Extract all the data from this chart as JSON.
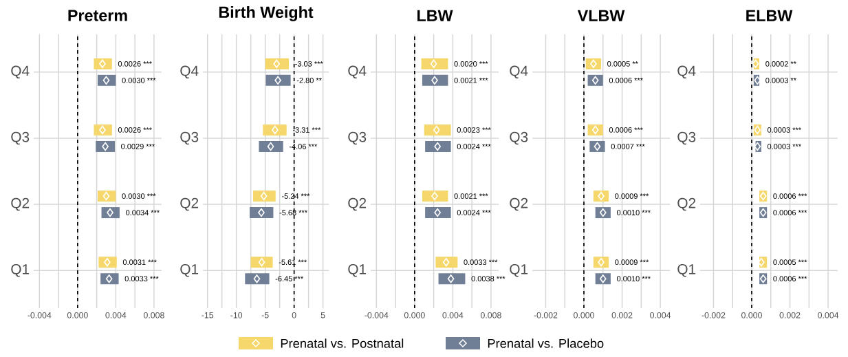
{
  "chart_data": [
    {
      "type": "scatter",
      "title": "Preterm",
      "orientation": "horizontal",
      "categories": [
        "Q4",
        "Q3",
        "Q2",
        "Q1"
      ],
      "xlim": [
        -0.0046,
        0.0088
      ],
      "xticks": [
        -0.004,
        {
          "value": -0.002,
          "label": null
        },
        {
          "value": 0,
          "label": "0.000"
        },
        {
          "value": 0.002,
          "label": null
        },
        0.004,
        {
          "value": 0.006,
          "label": null
        },
        0.008
      ],
      "grid": true,
      "marker": "diamond",
      "legend": "bottom",
      "ref_lines": [
        {
          "axis": "x",
          "value": 0,
          "color": "#000000",
          "line_style": "dashed"
        }
      ],
      "series": [
        {
          "type": "bar",
          "color": "#f6d76b",
          "base": [
            0.0017,
            0.0017,
            0.0021,
            0.0022
          ],
          "values": [
            0.0019,
            0.0019,
            0.0019,
            0.0019
          ]
        },
        {
          "type": "bar",
          "color": "#717f96",
          "base": [
            0.0021,
            0.0019,
            0.0025,
            0.0024
          ],
          "values": [
            0.0019,
            0.002,
            0.0019,
            0.0019
          ]
        },
        {
          "name": "Prenatal vs. Postnatal",
          "color": "#f6d76b",
          "values": [
            0.0026,
            0.0026,
            0.003,
            0.0031
          ],
          "value_labels": [
            "0.0026 ***",
            "0.0026 ***",
            "0.0030 ***",
            "0.0031 ***"
          ]
        },
        {
          "name": "Prenatal vs. Placebo",
          "color": "#717f96",
          "values": [
            0.003,
            0.0029,
            0.0034,
            0.0033
          ],
          "value_labels": [
            "0.0030 ***",
            "0.0029 ***",
            "0.0034 ***",
            "0.0033 ***"
          ]
        }
      ]
    },
    {
      "type": "scatter",
      "title": "Birth Weight",
      "orientation": "horizontal",
      "categories": [
        "Q4",
        "Q3",
        "Q2",
        "Q1"
      ],
      "xlim": [
        -15.8,
        6.0
      ],
      "xticks": [
        -15,
        {
          "value": -12.5,
          "label": null
        },
        -10,
        {
          "value": -7.5,
          "label": null
        },
        -5,
        {
          "value": -2.5,
          "label": null
        },
        0,
        {
          "value": 2.5,
          "label": null
        },
        5
      ],
      "grid": true,
      "marker": "diamond",
      "ref_lines": [
        {
          "axis": "x",
          "value": 0,
          "color": "#000000",
          "line_style": "dashed"
        }
      ],
      "series": [
        {
          "type": "bar",
          "color": "#f6d76b",
          "base": [
            -5.0,
            -5.4,
            -7.1,
            -7.5
          ],
          "values": [
            4.1,
            4.1,
            3.9,
            3.8
          ]
        },
        {
          "type": "bar",
          "color": "#717f96",
          "base": [
            -4.9,
            -6.1,
            -7.7,
            -8.5
          ],
          "values": [
            4.3,
            4.2,
            4.1,
            4.2
          ]
        },
        {
          "color": "#f6d76b",
          "values": [
            -3.03,
            -3.31,
            -5.24,
            -5.61
          ],
          "value_labels": [
            "-3.03 ***",
            "-3.31 ***",
            "-5.24 ***",
            "-5.61 ***"
          ]
        },
        {
          "color": "#717f96",
          "values": [
            -2.8,
            -4.06,
            -5.68,
            -6.45
          ],
          "value_labels": [
            "-2.80 **",
            "-4.06 ***",
            "-5.68 ***",
            "-6.45 ***"
          ]
        }
      ]
    },
    {
      "type": "scatter",
      "title": "LBW",
      "orientation": "horizontal",
      "categories": [
        "Q4",
        "Q3",
        "Q2",
        "Q1"
      ],
      "xlim": [
        -0.0046,
        0.0088
      ],
      "xticks": [
        -0.004,
        {
          "value": -0.002,
          "label": null
        },
        {
          "value": 0,
          "label": "0.000"
        },
        {
          "value": 0.002,
          "label": null
        },
        0.004,
        {
          "value": 0.006,
          "label": null
        },
        0.008
      ],
      "grid": true,
      "marker": "diamond",
      "ref_lines": [
        {
          "axis": "x",
          "value": 0,
          "color": "#000000",
          "line_style": "dashed"
        }
      ],
      "series": [
        {
          "type": "bar",
          "color": "#f6d76b",
          "base": [
            0.0007,
            0.001,
            0.0008,
            0.0022
          ],
          "values": [
            0.0028,
            0.0028,
            0.0027,
            0.0023
          ]
        },
        {
          "type": "bar",
          "color": "#717f96",
          "base": [
            0.0008,
            0.0011,
            0.0011,
            0.0025
          ],
          "values": [
            0.0027,
            0.0027,
            0.0027,
            0.0028
          ]
        },
        {
          "color": "#f6d76b",
          "values": [
            0.002,
            0.0023,
            0.0021,
            0.0033
          ],
          "value_labels": [
            "0.0020 ***",
            "0.0023 ***",
            "0.0021 ***",
            "0.0033 ***"
          ]
        },
        {
          "color": "#717f96",
          "values": [
            0.0021,
            0.0024,
            0.0024,
            0.0038
          ],
          "value_labels": [
            "0.0021 ***",
            "0.0024 ***",
            "0.0024 ***",
            "0.0038 ***"
          ]
        }
      ]
    },
    {
      "type": "scatter",
      "title": "VLBW",
      "orientation": "horizontal",
      "categories": [
        "Q4",
        "Q3",
        "Q2",
        "Q1"
      ],
      "xlim": [
        -0.0027,
        0.0045
      ],
      "xticks": [
        -0.002,
        {
          "value": -0.001,
          "label": null
        },
        {
          "value": 0,
          "label": "0.000"
        },
        {
          "value": 0.001,
          "label": null
        },
        0.002,
        {
          "value": 0.003,
          "label": null
        },
        0.004
      ],
      "grid": true,
      "marker": "diamond",
      "ref_lines": [
        {
          "axis": "x",
          "value": 0,
          "color": "#000000",
          "line_style": "dashed"
        }
      ],
      "series": [
        {
          "type": "bar",
          "color": "#f6d76b",
          "base": [
            0.0001,
            0.0002,
            0.0005,
            0.0005
          ],
          "values": [
            0.0008,
            0.0008,
            0.0008,
            0.0008
          ]
        },
        {
          "type": "bar",
          "color": "#717f96",
          "base": [
            0.0002,
            0.0003,
            0.0006,
            0.0006
          ],
          "values": [
            0.0008,
            0.0008,
            0.0008,
            0.0008
          ]
        },
        {
          "color": "#f6d76b",
          "values": [
            0.0005,
            0.0006,
            0.0009,
            0.0009
          ],
          "value_labels": [
            "0.0005 **",
            "0.0006 ***",
            "0.0009 ***",
            "0.0009 ***"
          ]
        },
        {
          "color": "#717f96",
          "values": [
            0.0006,
            0.0007,
            0.001,
            0.001
          ],
          "value_labels": [
            "0.0006 ***",
            "0.0007 ***",
            "0.0010 ***",
            "0.0010 ***"
          ]
        }
      ]
    },
    {
      "type": "scatter",
      "title": "ELBW",
      "orientation": "horizontal",
      "categories": [
        "Q4",
        "Q3",
        "Q2",
        "Q1"
      ],
      "xlim": [
        -0.0027,
        0.0045
      ],
      "xticks": [
        -0.002,
        {
          "value": -0.001,
          "label": null
        },
        {
          "value": 0,
          "label": "0.000"
        },
        {
          "value": 0.001,
          "label": null
        },
        0.002,
        {
          "value": 0.003,
          "label": null
        },
        0.004
      ],
      "grid": true,
      "marker": "diamond",
      "ref_lines": [
        {
          "axis": "x",
          "value": 0,
          "color": "#000000",
          "line_style": "dashed"
        }
      ],
      "series": [
        {
          "type": "bar",
          "color": "#f6d76b",
          "base": [
            0.0001,
            0.0001,
            0.0004,
            0.0004
          ],
          "values": [
            0.0003,
            0.0004,
            0.0004,
            0.0004
          ]
        },
        {
          "type": "bar",
          "color": "#717f96",
          "base": [
            0.0001,
            0.0002,
            0.0004,
            0.0004
          ],
          "values": [
            0.0003,
            0.0003,
            0.0004,
            0.0004
          ]
        },
        {
          "color": "#f6d76b",
          "values": [
            0.0002,
            0.0003,
            0.0006,
            0.0005
          ],
          "value_labels": [
            "0.0002 **",
            "0.0003 ***",
            "0.0006 ***",
            "0.0005 ***"
          ]
        },
        {
          "color": "#717f96",
          "values": [
            0.0003,
            0.0003,
            0.0006,
            0.0006
          ],
          "value_labels": [
            "0.0003 **",
            "0.0003 ***",
            "0.0006 ***",
            "0.0006 ***"
          ]
        }
      ]
    }
  ]
}
